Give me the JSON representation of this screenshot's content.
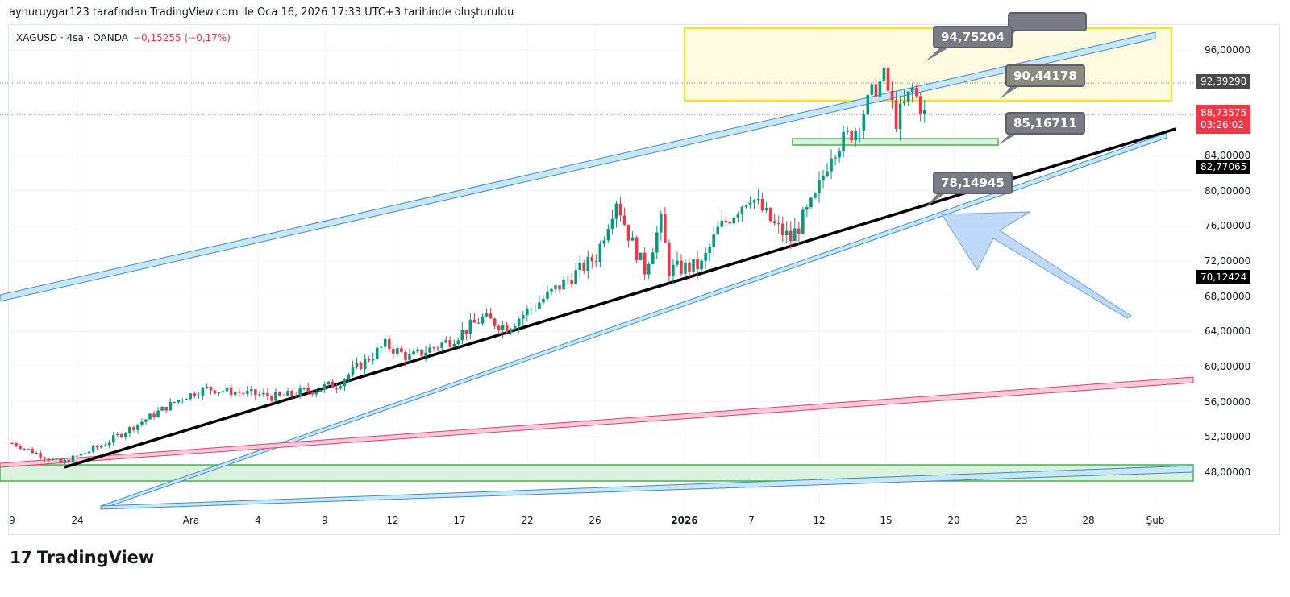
{
  "header": "aynuruygar123 tarafından TradingView.com ile Oca 16, 2026 17:33 UTC+3 tarihinde oluşturuldu",
  "legend": {
    "symbol": "XAGUSD · 4sa · OANDA",
    "change": "−0,15255 (−0,17%)"
  },
  "price_axis": [
    "96,00000",
    "84,00000",
    "80,00000",
    "76,00000",
    "72,00000",
    "68,00000",
    "64,00000",
    "60,00000",
    "56,00000",
    "52,00000",
    "48,00000"
  ],
  "price_axis_values": [
    96,
    84,
    80,
    76,
    72,
    68,
    64,
    60,
    56,
    52,
    48
  ],
  "badges": {
    "high": "92,39290",
    "last": "88,73575",
    "countdown": "03:26:02",
    "line1": "82,77065",
    "line2": "70,12424"
  },
  "time_axis": [
    "9",
    "24",
    "Ara",
    "4",
    "9",
    "12",
    "17",
    "22",
    "26",
    "2026",
    "7",
    "12",
    "15",
    "20",
    "23",
    "28",
    "Şub"
  ],
  "callouts": [
    "94,75204",
    "90,44178",
    "85,16711",
    "78,14945"
  ],
  "colors": {
    "up": "#089981",
    "down": "#f23645"
  },
  "price_path": [
    [
      0,
      51.3
    ],
    [
      12,
      49
    ],
    [
      22,
      51
    ],
    [
      42,
      56.5
    ],
    [
      48,
      57.5
    ],
    [
      66,
      56.5
    ],
    [
      80,
      58
    ],
    [
      92,
      62.5
    ],
    [
      98,
      61
    ],
    [
      108,
      63
    ],
    [
      116,
      65.5
    ],
    [
      122,
      64.5
    ],
    [
      136,
      69.5
    ],
    [
      144,
      72.5
    ],
    [
      149,
      79
    ],
    [
      152,
      75
    ],
    [
      156,
      71
    ],
    [
      160,
      76.5
    ],
    [
      162,
      71
    ],
    [
      170,
      71.5
    ],
    [
      174,
      75.5
    ],
    [
      182,
      79.5
    ],
    [
      188,
      76
    ],
    [
      192,
      74.5
    ],
    [
      198,
      79
    ],
    [
      202,
      84.5
    ],
    [
      208,
      87
    ],
    [
      212,
      91
    ],
    [
      215,
      93
    ],
    [
      218,
      88
    ],
    [
      222,
      91.5
    ],
    [
      225,
      88.7
    ]
  ],
  "logo": "TradingView"
}
